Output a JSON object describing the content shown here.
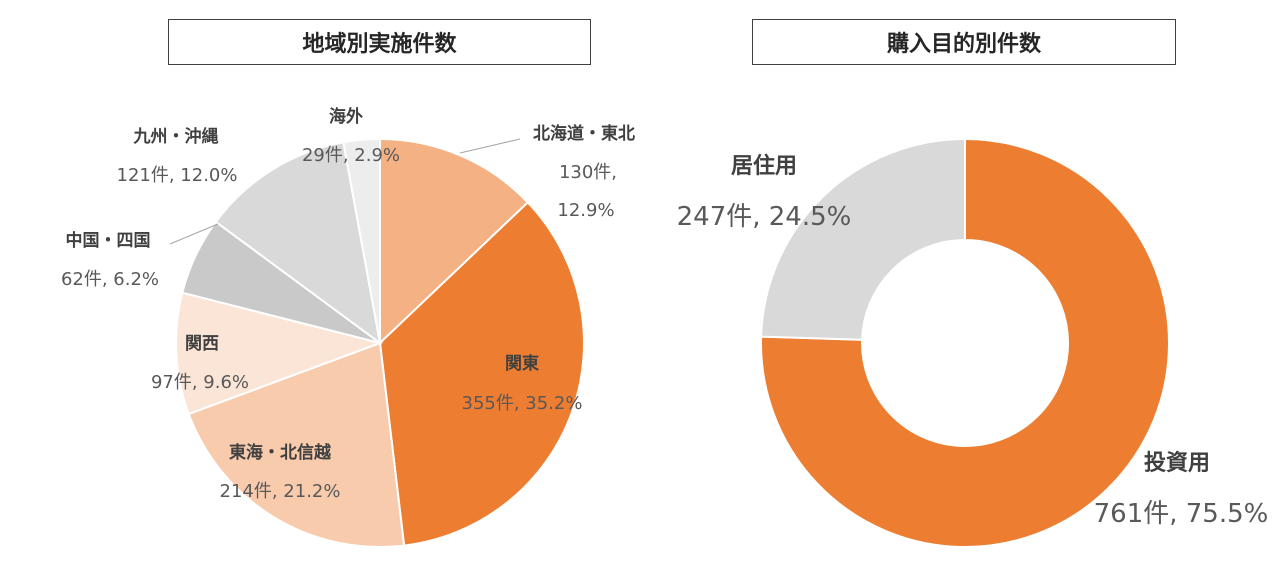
{
  "chart_data": [
    {
      "type": "pie",
      "title": "地域別実施件数",
      "slices": [
        {
          "name": "北海道・東北",
          "count": 130,
          "percent": 12.9,
          "value_label": "130件,",
          "percent_label": "12.9%",
          "color": "#F4B183"
        },
        {
          "name": "関東",
          "count": 355,
          "percent": 35.2,
          "value_label": "355件, 35.2%",
          "color": "#ED7D31"
        },
        {
          "name": "東海・北信越",
          "count": 214,
          "percent": 21.2,
          "value_label": "214件, 21.2%",
          "color": "#F8CBAD"
        },
        {
          "name": "関西",
          "count": 97,
          "percent": 9.6,
          "value_label": "97件, 9.6%",
          "color": "#FBE5D6"
        },
        {
          "name": "中国・四国",
          "count": 62,
          "percent": 6.2,
          "value_label": "62件, 6.2%",
          "color": "#C9C9C9"
        },
        {
          "name": "九州・沖縄",
          "count": 121,
          "percent": 12.0,
          "value_label": "121件, 12.0%",
          "color": "#D9D9D9"
        },
        {
          "name": "海外",
          "count": 29,
          "percent": 2.9,
          "value_label": "29件, 2.9%",
          "color": "#EDEDED"
        }
      ]
    },
    {
      "type": "donut",
      "title": "購入目的別件数",
      "slices": [
        {
          "name": "投資用",
          "count": 761,
          "percent": 75.5,
          "value_label": "761件, 75.5%",
          "color": "#ED7D31"
        },
        {
          "name": "居住用",
          "count": 247,
          "percent": 24.5,
          "value_label": "247件, 24.5%",
          "color": "#D9D9D9"
        }
      ]
    }
  ]
}
